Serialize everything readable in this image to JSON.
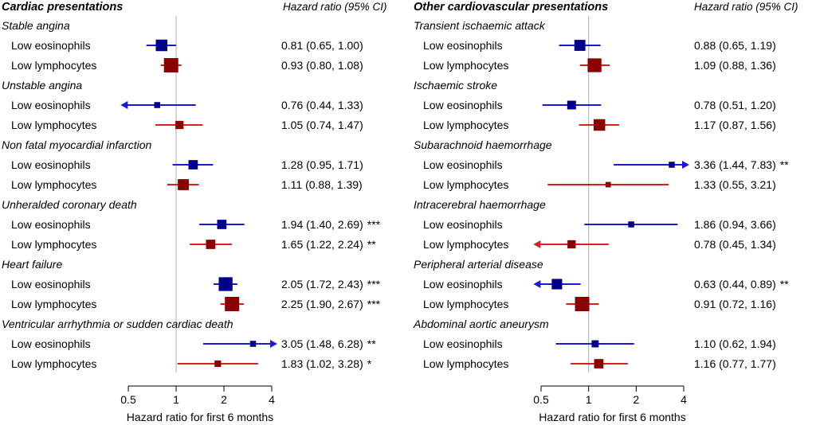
{
  "chart_data": [
    {
      "type": "forest",
      "title": "Cardiac presentations",
      "value_header": "Hazard ratio (95% CI)",
      "xlabel": "Hazard ratio for first 6 months",
      "xscale": "log",
      "xlim": [
        0.5,
        4
      ],
      "xticks": [
        0.5,
        1,
        2,
        4
      ],
      "xtick_labels": [
        "0.5",
        "1",
        "2",
        "4"
      ],
      "reference_line": 1,
      "groups": [
        {
          "name": "Stable angina",
          "rows": [
            {
              "label": "Low eosinophils",
              "hr": 0.81,
              "lo": 0.65,
              "hi": 1.0,
              "text": "0.81 (0.65, 1.00)",
              "sig": "",
              "weight": 0.75
            },
            {
              "label": "Low lymphocytes",
              "hr": 0.93,
              "lo": 0.8,
              "hi": 1.08,
              "text": "0.93 (0.80, 1.08)",
              "sig": "",
              "weight": 1.0
            }
          ]
        },
        {
          "name": "Unstable angina",
          "rows": [
            {
              "label": "Low eosinophils",
              "hr": 0.76,
              "lo": 0.44,
              "hi": 1.33,
              "text": "0.76 (0.44, 1.33)",
              "sig": "",
              "weight": 0.25
            },
            {
              "label": "Low lymphocytes",
              "hr": 1.05,
              "lo": 0.74,
              "hi": 1.47,
              "text": "1.05 (0.74, 1.47)",
              "sig": "",
              "weight": 0.45
            }
          ]
        },
        {
          "name": "Non  fatal myocardial infarction",
          "rows": [
            {
              "label": "Low eosinophils",
              "hr": 1.28,
              "lo": 0.95,
              "hi": 1.71,
              "text": "1.28 (0.95, 1.71)",
              "sig": "",
              "weight": 0.55
            },
            {
              "label": "Low lymphocytes",
              "hr": 1.11,
              "lo": 0.88,
              "hi": 1.39,
              "text": "1.11 (0.88, 1.39)",
              "sig": "",
              "weight": 0.7
            }
          ]
        },
        {
          "name": "Unheralded coronary death",
          "rows": [
            {
              "label": "Low eosinophils",
              "hr": 1.94,
              "lo": 1.4,
              "hi": 2.69,
              "text": "1.94 (1.40, 2.69)",
              "sig": "***",
              "weight": 0.55
            },
            {
              "label": "Low lymphocytes",
              "hr": 1.65,
              "lo": 1.22,
              "hi": 2.24,
              "text": "1.65 (1.22, 2.24)",
              "sig": "**",
              "weight": 0.55
            }
          ]
        },
        {
          "name": "Heart failure",
          "rows": [
            {
              "label": "Low eosinophils",
              "hr": 2.05,
              "lo": 1.72,
              "hi": 2.43,
              "text": "2.05 (1.72, 2.43)",
              "sig": "***",
              "weight": 0.95
            },
            {
              "label": "Low lymphocytes",
              "hr": 2.25,
              "lo": 1.9,
              "hi": 2.67,
              "text": "2.25 (1.90, 2.67)",
              "sig": "***",
              "weight": 1.0
            }
          ]
        },
        {
          "name": "Ventricular arrhythmia or sudden cardiac death",
          "rows": [
            {
              "label": "Low eosinophils",
              "hr": 3.05,
              "lo": 1.48,
              "hi": 6.28,
              "text": "3.05 (1.48, 6.28)",
              "sig": "**",
              "weight": 0.25
            },
            {
              "label": "Low lymphocytes",
              "hr": 1.83,
              "lo": 1.02,
              "hi": 3.28,
              "text": "1.83 (1.02, 3.28)",
              "sig": "*",
              "weight": 0.3
            }
          ]
        }
      ]
    },
    {
      "type": "forest",
      "title": "Other cardiovascular presentations",
      "value_header": "Hazard ratio (95% CI)",
      "xlabel": "Hazard ratio for first 6 months",
      "xscale": "log",
      "xlim": [
        0.5,
        4
      ],
      "xticks": [
        0.5,
        1,
        2,
        4
      ],
      "xtick_labels": [
        "0.5",
        "1",
        "2",
        "4"
      ],
      "reference_line": 1,
      "groups": [
        {
          "name": "Transient ischaemic attack",
          "rows": [
            {
              "label": "Low eosinophils",
              "hr": 0.88,
              "lo": 0.65,
              "hi": 1.19,
              "text": "0.88 (0.65, 1.19)",
              "sig": "",
              "weight": 0.7
            },
            {
              "label": "Low lymphocytes",
              "hr": 1.09,
              "lo": 0.88,
              "hi": 1.36,
              "text": "1.09 (0.88, 1.36)",
              "sig": "",
              "weight": 0.95
            }
          ]
        },
        {
          "name": "Ischaemic stroke",
          "rows": [
            {
              "label": "Low eosinophils",
              "hr": 0.78,
              "lo": 0.51,
              "hi": 1.2,
              "text": "0.78 (0.51, 1.20)",
              "sig": "",
              "weight": 0.5
            },
            {
              "label": "Low lymphocytes",
              "hr": 1.17,
              "lo": 0.87,
              "hi": 1.56,
              "text": "1.17 (0.87, 1.56)",
              "sig": "",
              "weight": 0.75
            }
          ]
        },
        {
          "name": "Subarachnoid haemorrhage",
          "rows": [
            {
              "label": "Low eosinophils",
              "hr": 3.36,
              "lo": 1.44,
              "hi": 7.83,
              "text": "3.36 (1.44, 7.83)",
              "sig": "**",
              "weight": 0.25
            },
            {
              "label": "Low lymphocytes",
              "hr": 1.33,
              "lo": 0.55,
              "hi": 3.21,
              "text": "1.33 (0.55, 3.21)",
              "sig": "",
              "weight": 0.2
            }
          ]
        },
        {
          "name": "Intracerebral haemorrhage",
          "rows": [
            {
              "label": "Low eosinophils",
              "hr": 1.86,
              "lo": 0.94,
              "hi": 3.66,
              "text": "1.86 (0.94, 3.66)",
              "sig": "",
              "weight": 0.25
            },
            {
              "label": "Low lymphocytes",
              "hr": 0.78,
              "lo": 0.45,
              "hi": 1.34,
              "text": "0.78 (0.45, 1.34)",
              "sig": "",
              "weight": 0.45
            }
          ]
        },
        {
          "name": "Peripheral arterial disease",
          "rows": [
            {
              "label": "Low eosinophils",
              "hr": 0.63,
              "lo": 0.44,
              "hi": 0.89,
              "text": "0.63 (0.44, 0.89)",
              "sig": "**",
              "weight": 0.65
            },
            {
              "label": "Low lymphocytes",
              "hr": 0.91,
              "lo": 0.72,
              "hi": 1.16,
              "text": "0.91 (0.72, 1.16)",
              "sig": "",
              "weight": 1.0
            }
          ]
        },
        {
          "name": "Abdominal aortic aneurysm",
          "rows": [
            {
              "label": "Low eosinophils",
              "hr": 1.1,
              "lo": 0.62,
              "hi": 1.94,
              "text": "1.10 (0.62, 1.94)",
              "sig": "",
              "weight": 0.35
            },
            {
              "label": "Low lymphocytes",
              "hr": 1.16,
              "lo": 0.77,
              "hi": 1.77,
              "text": "1.16 (0.77, 1.77)",
              "sig": "",
              "weight": 0.55
            }
          ]
        }
      ]
    }
  ],
  "colors": {
    "Low eosinophils": "#00008b",
    "Low lymphocytes": "#8b0000",
    "Low eosinophils_line": "#1a1ad4",
    "Low lymphocytes_line": "#d42020",
    "reference_line": "#bbbbbb"
  }
}
